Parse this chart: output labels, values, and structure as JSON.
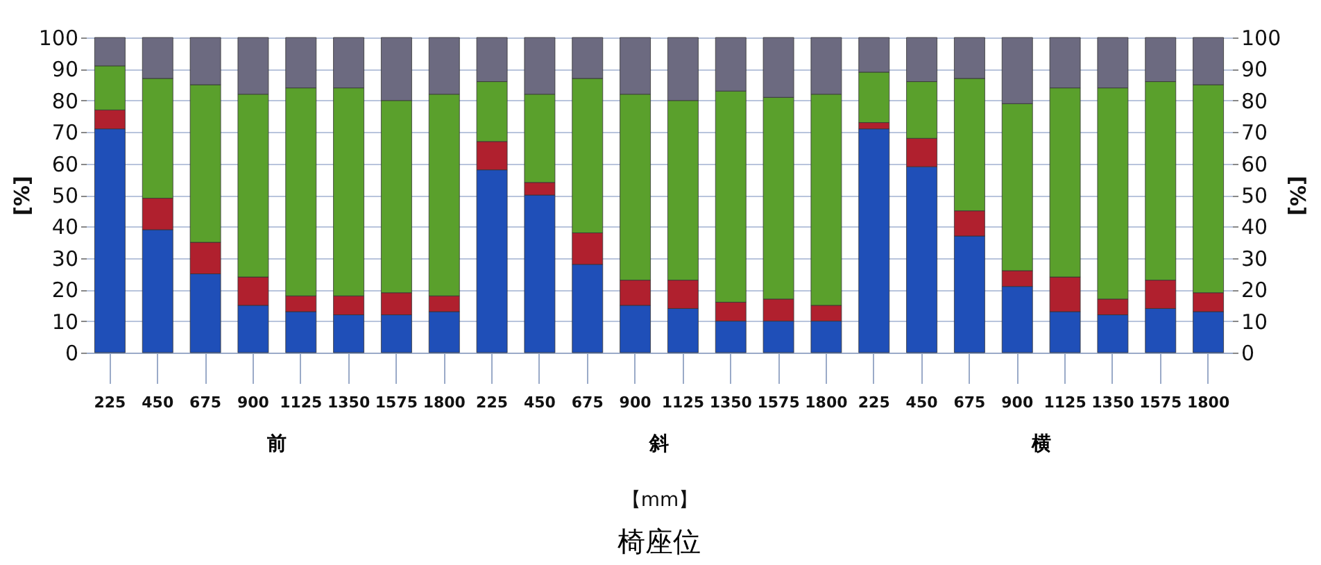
{
  "chart_data": {
    "type": "bar",
    "stacked": true,
    "title": "椅座位",
    "xlabel": "【mm】",
    "ylabel": "[%]",
    "y2label": "[%]",
    "annotations": [
      "前",
      "斜",
      "横"
    ],
    "categories": [
      "225",
      "450",
      "675",
      "900",
      "1125",
      "1350",
      "1575",
      "1800",
      "225",
      "450",
      "675",
      "900",
      "1125",
      "1350",
      "1575",
      "1800",
      "225",
      "450",
      "675",
      "900",
      "1125",
      "1350",
      "1575",
      "1800"
    ],
    "series": [
      {
        "color": "#1f4fb8",
        "values": [
          71,
          39,
          25,
          15,
          13,
          12,
          12,
          13,
          58,
          50,
          28,
          15,
          14,
          10,
          10,
          10,
          71,
          59,
          37,
          21,
          13,
          12,
          14,
          13
        ]
      },
      {
        "color": "#b0202e",
        "values": [
          6,
          10,
          10,
          9,
          5,
          6,
          7,
          5,
          9,
          4,
          10,
          8,
          9,
          6,
          7,
          5,
          2,
          9,
          8,
          5,
          11,
          5,
          9,
          6
        ]
      },
      {
        "color": "#5aa02c",
        "values": [
          14,
          38,
          50,
          58,
          66,
          66,
          61,
          64,
          19,
          28,
          49,
          59,
          57,
          67,
          64,
          67,
          16,
          18,
          42,
          53,
          60,
          67,
          63,
          66
        ]
      },
      {
        "color": "#6c6a80",
        "values": [
          9,
          13,
          15,
          18,
          16,
          16,
          20,
          18,
          14,
          18,
          13,
          18,
          20,
          17,
          19,
          18,
          11,
          14,
          13,
          21,
          16,
          16,
          14,
          15
        ]
      }
    ],
    "ylim": [
      0,
      100
    ],
    "yticks": [
      0,
      10,
      20,
      30,
      40,
      50,
      60,
      70,
      80,
      90,
      100
    ],
    "y2lim": [
      0,
      100
    ],
    "y2ticks": [
      0,
      10,
      20,
      30,
      40,
      50,
      60,
      70,
      80,
      90,
      100
    ],
    "grid": "y",
    "legend": false
  }
}
